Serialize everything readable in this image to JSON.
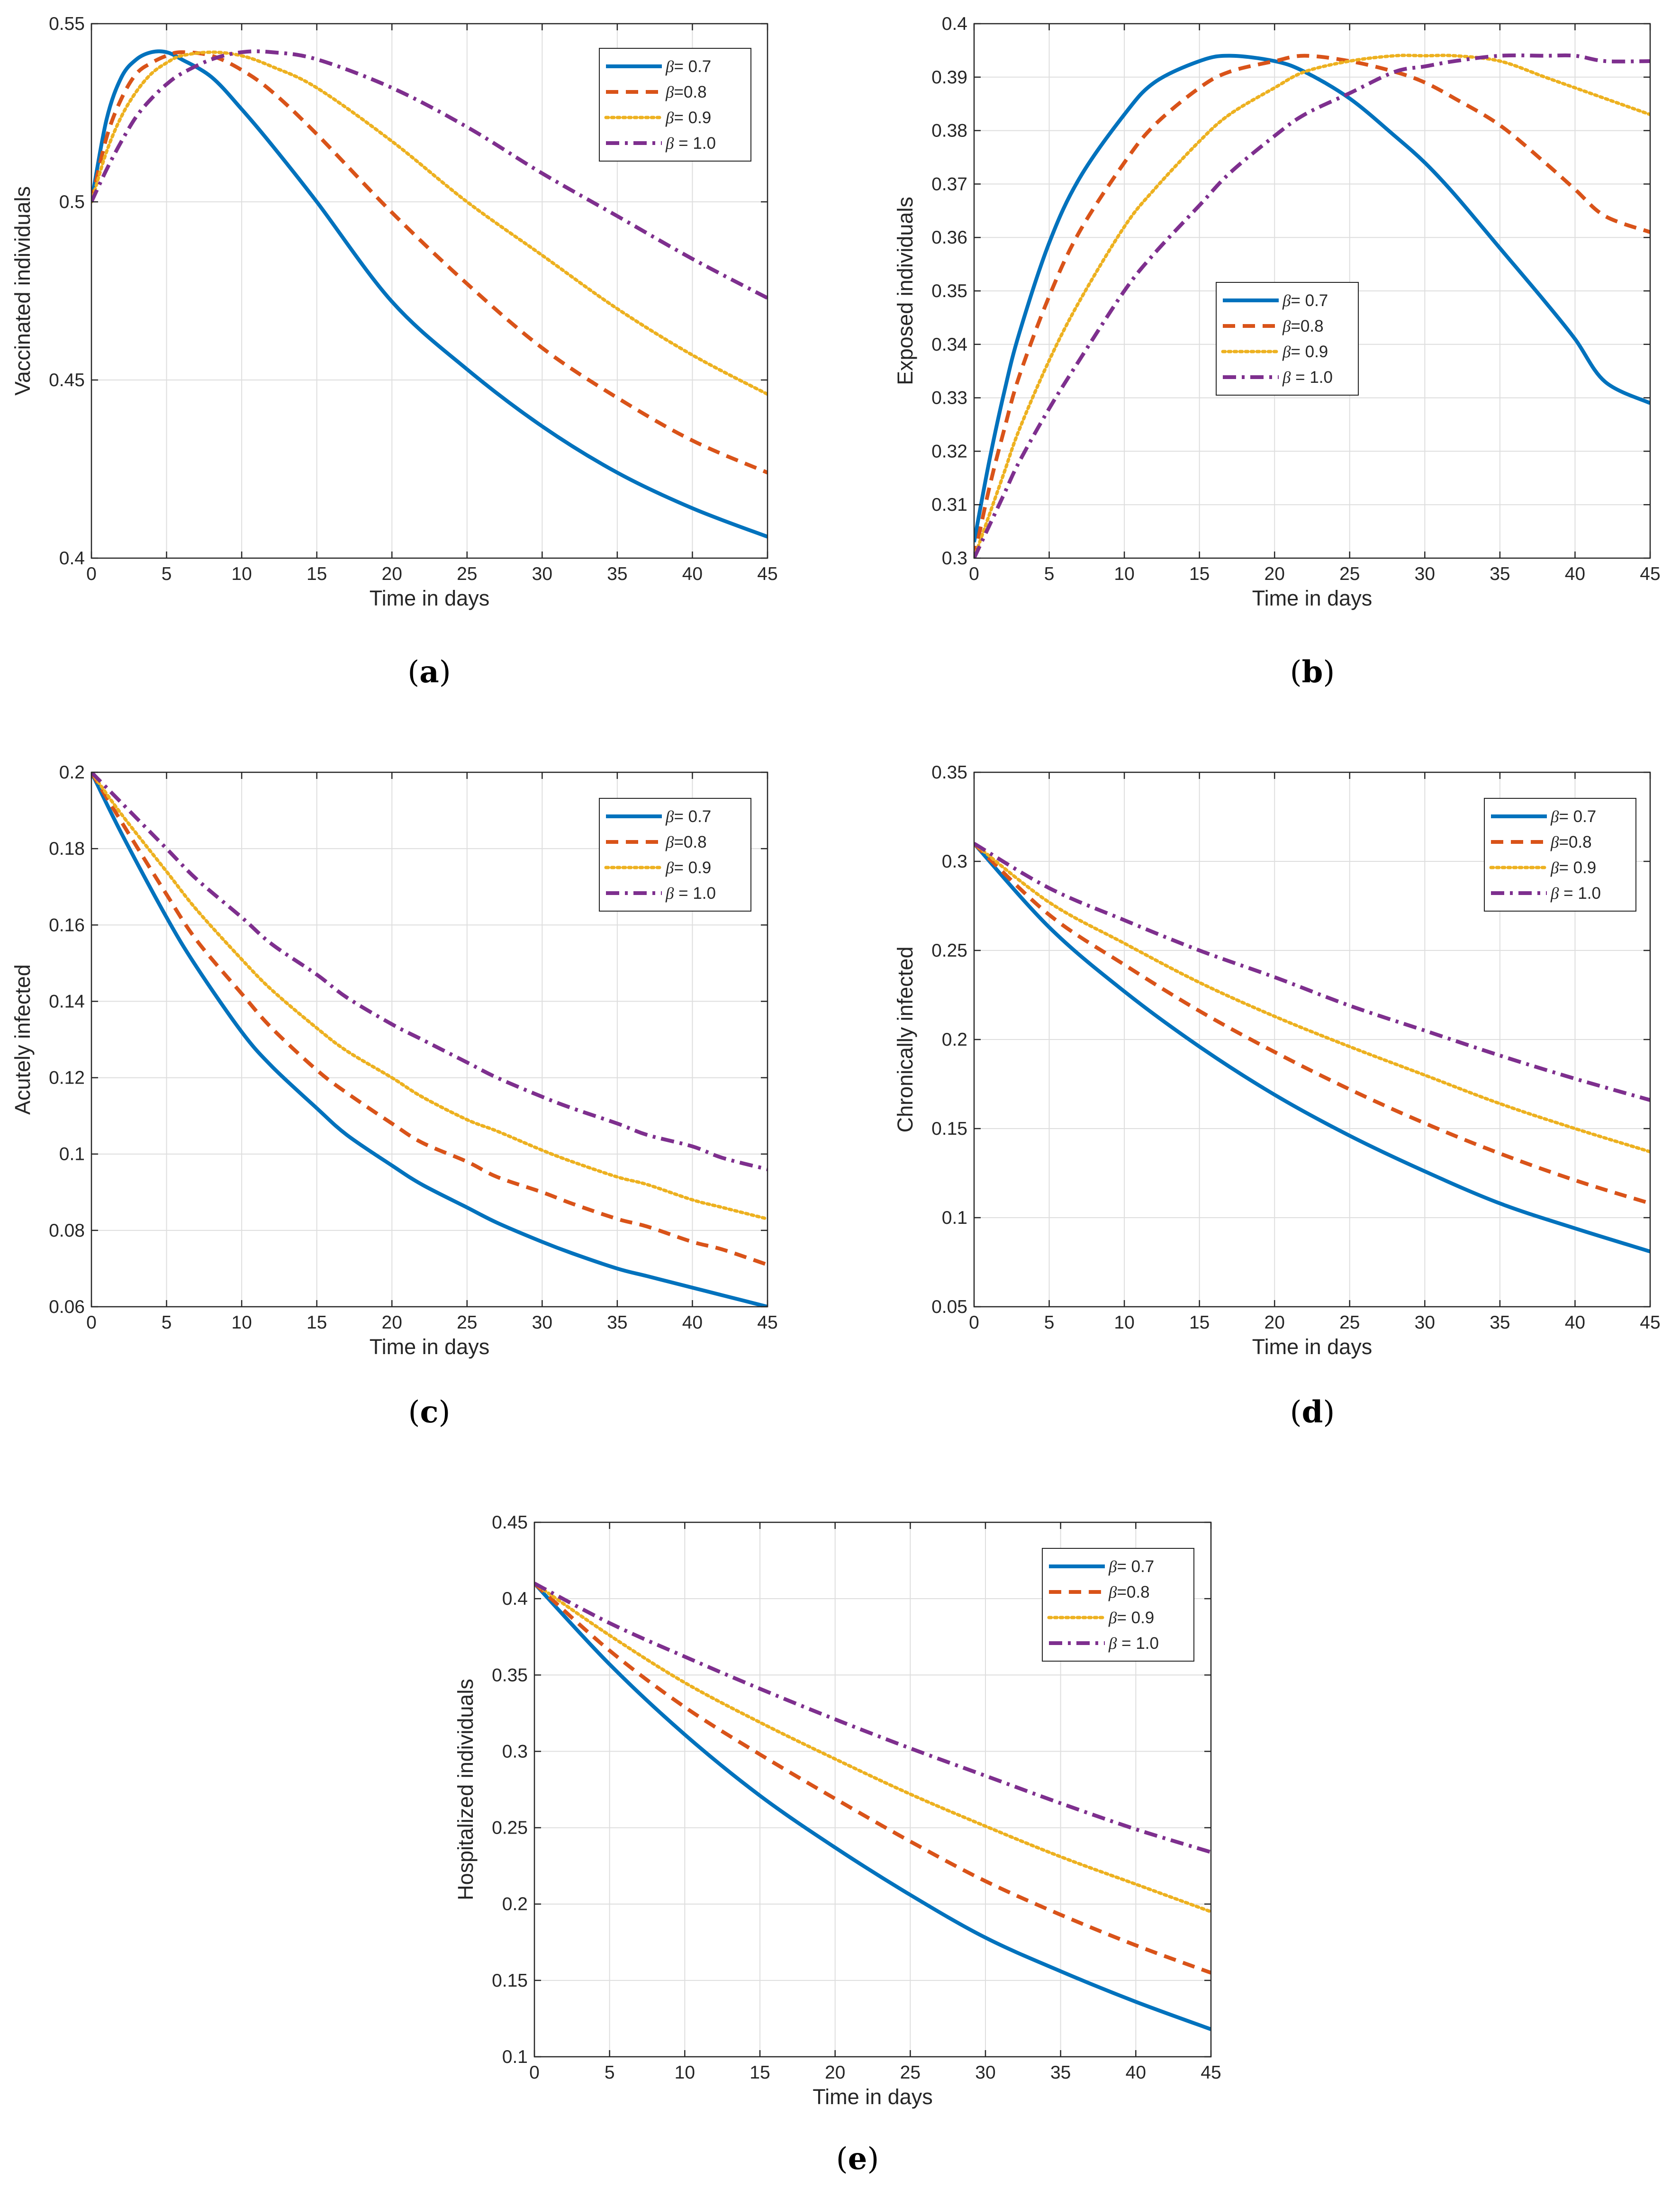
{
  "colors": {
    "beta_0_7": "#0072BD",
    "beta_0_8": "#D95319",
    "beta_0_9": "#EDB120",
    "beta_1_0": "#7E2F8E",
    "grid": "#dedede",
    "axes": "#262626"
  },
  "legend_entries": [
    {
      "greek": "β",
      "text": "= 0.7",
      "color_key": "beta_0_7",
      "dash": "solid"
    },
    {
      "greek": "β",
      "text": "=0.8",
      "color_key": "beta_0_8",
      "dash": "dashed"
    },
    {
      "greek": "β",
      "text": "= 0.9",
      "color_key": "beta_0_9",
      "dash": "dotted"
    },
    {
      "greek": "β",
      "text": " = 1.0",
      "color_key": "beta_1_0",
      "dash": "dashdot"
    }
  ],
  "chart_data": [
    {
      "id": "a",
      "type": "line",
      "caption_letter": "a",
      "xlabel": "Time in days",
      "ylabel": "Vaccinated individuals",
      "xlim": [
        0,
        45
      ],
      "ylim": [
        0.4,
        0.55
      ],
      "xticks": [
        0,
        5,
        10,
        15,
        20,
        25,
        30,
        35,
        40,
        45
      ],
      "yticks": [
        0.4,
        0.45,
        0.5,
        0.55
      ],
      "ytick_labels": [
        "0.4",
        "0.45",
        "0.5",
        "0.55"
      ],
      "legend_position": "top-right",
      "x": [
        0,
        1,
        2,
        3,
        4,
        5,
        6,
        8,
        10,
        12,
        15,
        20,
        25,
        30,
        35,
        40,
        45
      ],
      "series": [
        {
          "name": "β= 0.7",
          "values": [
            0.5,
            0.523,
            0.535,
            0.54,
            0.542,
            0.542,
            0.54,
            0.535,
            0.526,
            0.516,
            0.5,
            0.472,
            0.453,
            0.437,
            0.424,
            0.414,
            0.406
          ]
        },
        {
          "name": "β=0.8",
          "values": [
            0.5,
            0.518,
            0.529,
            0.536,
            0.539,
            0.541,
            0.542,
            0.541,
            0.537,
            0.531,
            0.519,
            0.497,
            0.477,
            0.459,
            0.445,
            0.433,
            0.424
          ]
        },
        {
          "name": "β= 0.9",
          "values": [
            0.5,
            0.514,
            0.524,
            0.531,
            0.536,
            0.539,
            0.541,
            0.542,
            0.541,
            0.538,
            0.532,
            0.517,
            0.5,
            0.485,
            0.47,
            0.457,
            0.446
          ]
        },
        {
          "name": "β = 1.0",
          "values": [
            0.5,
            0.509,
            0.517,
            0.524,
            0.529,
            0.533,
            0.536,
            0.54,
            0.542,
            0.542,
            0.54,
            0.532,
            0.521,
            0.508,
            0.496,
            0.484,
            0.473
          ]
        }
      ]
    },
    {
      "id": "b",
      "type": "line",
      "caption_letter": "b",
      "xlabel": "Time in days",
      "ylabel": "Exposed individuals",
      "xlim": [
        0,
        45
      ],
      "ylim": [
        0.3,
        0.4
      ],
      "xticks": [
        0,
        5,
        10,
        15,
        20,
        25,
        30,
        35,
        40,
        45
      ],
      "yticks": [
        0.3,
        0.31,
        0.32,
        0.33,
        0.34,
        0.35,
        0.36,
        0.37,
        0.38,
        0.39,
        0.4
      ],
      "ytick_labels": [
        "0.3",
        "0.31",
        "0.32",
        "0.33",
        "0.34",
        "0.35",
        "0.36",
        "0.37",
        "0.38",
        "0.39",
        "0.4"
      ],
      "legend_position": "center-left",
      "x": [
        0,
        1,
        2,
        3,
        5,
        7,
        10,
        12,
        15,
        17,
        20,
        22,
        25,
        28,
        30,
        32,
        35,
        38,
        40,
        42,
        45
      ],
      "series": [
        {
          "name": "β= 0.7",
          "values": [
            0.303,
            0.318,
            0.331,
            0.342,
            0.359,
            0.371,
            0.383,
            0.389,
            0.393,
            0.394,
            0.393,
            0.391,
            0.386,
            0.379,
            0.374,
            0.368,
            0.358,
            0.348,
            0.341,
            0.333,
            0.329
          ]
        },
        {
          "name": "β=0.8",
          "values": [
            0.3,
            0.313,
            0.324,
            0.334,
            0.349,
            0.361,
            0.374,
            0.381,
            0.388,
            0.391,
            0.393,
            0.394,
            0.393,
            0.391,
            0.389,
            0.386,
            0.381,
            0.374,
            0.369,
            0.364,
            0.361
          ]
        },
        {
          "name": "β= 0.9",
          "values": [
            0.3,
            0.308,
            0.316,
            0.324,
            0.337,
            0.348,
            0.362,
            0.369,
            0.378,
            0.383,
            0.388,
            0.391,
            0.393,
            0.394,
            0.394,
            0.394,
            0.393,
            0.39,
            0.388,
            0.386,
            0.383
          ]
        },
        {
          "name": "β = 1.0",
          "values": [
            0.3,
            0.306,
            0.312,
            0.318,
            0.328,
            0.337,
            0.35,
            0.357,
            0.366,
            0.372,
            0.379,
            0.383,
            0.387,
            0.391,
            0.392,
            0.393,
            0.394,
            0.394,
            0.394,
            0.393,
            0.393
          ]
        }
      ]
    },
    {
      "id": "c",
      "type": "line",
      "caption_letter": "c",
      "xlabel": "Time in days",
      "ylabel": "Acutely infected",
      "xlim": [
        0,
        45
      ],
      "ylim": [
        0.06,
        0.2
      ],
      "xticks": [
        0,
        5,
        10,
        15,
        20,
        25,
        30,
        35,
        40,
        45
      ],
      "yticks": [
        0.06,
        0.08,
        0.1,
        0.12,
        0.14,
        0.16,
        0.18,
        0.2
      ],
      "ytick_labels": [
        "0.06",
        "0.08",
        "0.1",
        "0.12",
        "0.14",
        "0.16",
        "0.18",
        "0.2"
      ],
      "legend_position": "top-right",
      "x": [
        0,
        2,
        5,
        7,
        10,
        12,
        15,
        17,
        20,
        22,
        25,
        27,
        30,
        32,
        35,
        37,
        40,
        42,
        45
      ],
      "series": [
        {
          "name": "β= 0.7",
          "values": [
            0.2,
            0.184,
            0.162,
            0.149,
            0.132,
            0.123,
            0.112,
            0.105,
            0.097,
            0.092,
            0.086,
            0.082,
            0.077,
            0.074,
            0.07,
            0.068,
            0.065,
            0.063,
            0.06
          ]
        },
        {
          "name": "β=0.8",
          "values": [
            0.2,
            0.187,
            0.168,
            0.156,
            0.142,
            0.133,
            0.122,
            0.116,
            0.108,
            0.103,
            0.098,
            0.094,
            0.09,
            0.087,
            0.083,
            0.081,
            0.077,
            0.075,
            0.071
          ]
        },
        {
          "name": "β= 0.9",
          "values": [
            0.2,
            0.189,
            0.174,
            0.164,
            0.151,
            0.143,
            0.133,
            0.127,
            0.12,
            0.115,
            0.109,
            0.106,
            0.101,
            0.098,
            0.094,
            0.092,
            0.088,
            0.086,
            0.083
          ]
        },
        {
          "name": "β = 1.0",
          "values": [
            0.2,
            0.192,
            0.18,
            0.172,
            0.162,
            0.155,
            0.147,
            0.141,
            0.134,
            0.13,
            0.124,
            0.12,
            0.115,
            0.112,
            0.108,
            0.105,
            0.102,
            0.099,
            0.096
          ]
        }
      ]
    },
    {
      "id": "d",
      "type": "line",
      "caption_letter": "d",
      "xlabel": "Time in days",
      "ylabel": "Chronically infected",
      "xlim": [
        0,
        45
      ],
      "ylim": [
        0.05,
        0.35
      ],
      "xticks": [
        0,
        5,
        10,
        15,
        20,
        25,
        30,
        35,
        40,
        45
      ],
      "yticks": [
        0.05,
        0.1,
        0.15,
        0.2,
        0.25,
        0.3,
        0.35
      ],
      "ytick_labels": [
        "0.05",
        "0.1",
        "0.15",
        "0.2",
        "0.25",
        "0.3",
        "0.35"
      ],
      "legend_position": "top-right",
      "x": [
        0,
        5,
        10,
        15,
        20,
        25,
        30,
        35,
        40,
        45
      ],
      "series": [
        {
          "name": "β= 0.7",
          "values": [
            0.31,
            0.263,
            0.227,
            0.196,
            0.169,
            0.146,
            0.126,
            0.108,
            0.094,
            0.081
          ]
        },
        {
          "name": "β=0.8",
          "values": [
            0.31,
            0.27,
            0.242,
            0.216,
            0.193,
            0.172,
            0.153,
            0.136,
            0.121,
            0.108
          ]
        },
        {
          "name": "β= 0.9",
          "values": [
            0.31,
            0.277,
            0.254,
            0.232,
            0.213,
            0.196,
            0.18,
            0.164,
            0.15,
            0.137
          ]
        },
        {
          "name": "β = 1.0",
          "values": [
            0.31,
            0.285,
            0.267,
            0.25,
            0.235,
            0.219,
            0.205,
            0.191,
            0.178,
            0.166
          ]
        }
      ]
    },
    {
      "id": "e",
      "type": "line",
      "caption_letter": "e",
      "xlabel": "Time in days",
      "ylabel": "Hospitalized individuals",
      "xlim": [
        0,
        45
      ],
      "ylim": [
        0.1,
        0.45
      ],
      "xticks": [
        0,
        5,
        10,
        15,
        20,
        25,
        30,
        35,
        40,
        45
      ],
      "yticks": [
        0.1,
        0.15,
        0.2,
        0.25,
        0.3,
        0.35,
        0.4,
        0.45
      ],
      "ytick_labels": [
        "0.1",
        "0.15",
        "0.2",
        "0.25",
        "0.3",
        "0.35",
        "0.4",
        "0.45"
      ],
      "legend_position": "top-right",
      "x": [
        0,
        5,
        10,
        15,
        20,
        25,
        30,
        35,
        40,
        45
      ],
      "series": [
        {
          "name": "β= 0.7",
          "values": [
            0.41,
            0.357,
            0.311,
            0.271,
            0.237,
            0.206,
            0.178,
            0.156,
            0.136,
            0.118
          ]
        },
        {
          "name": "β=0.8",
          "values": [
            0.41,
            0.366,
            0.329,
            0.298,
            0.269,
            0.241,
            0.215,
            0.193,
            0.173,
            0.155
          ]
        },
        {
          "name": "β= 0.9",
          "values": [
            0.41,
            0.376,
            0.345,
            0.319,
            0.295,
            0.272,
            0.251,
            0.231,
            0.213,
            0.195
          ]
        },
        {
          "name": "β = 1.0",
          "values": [
            0.41,
            0.384,
            0.362,
            0.341,
            0.321,
            0.302,
            0.284,
            0.266,
            0.249,
            0.234
          ]
        }
      ]
    }
  ]
}
